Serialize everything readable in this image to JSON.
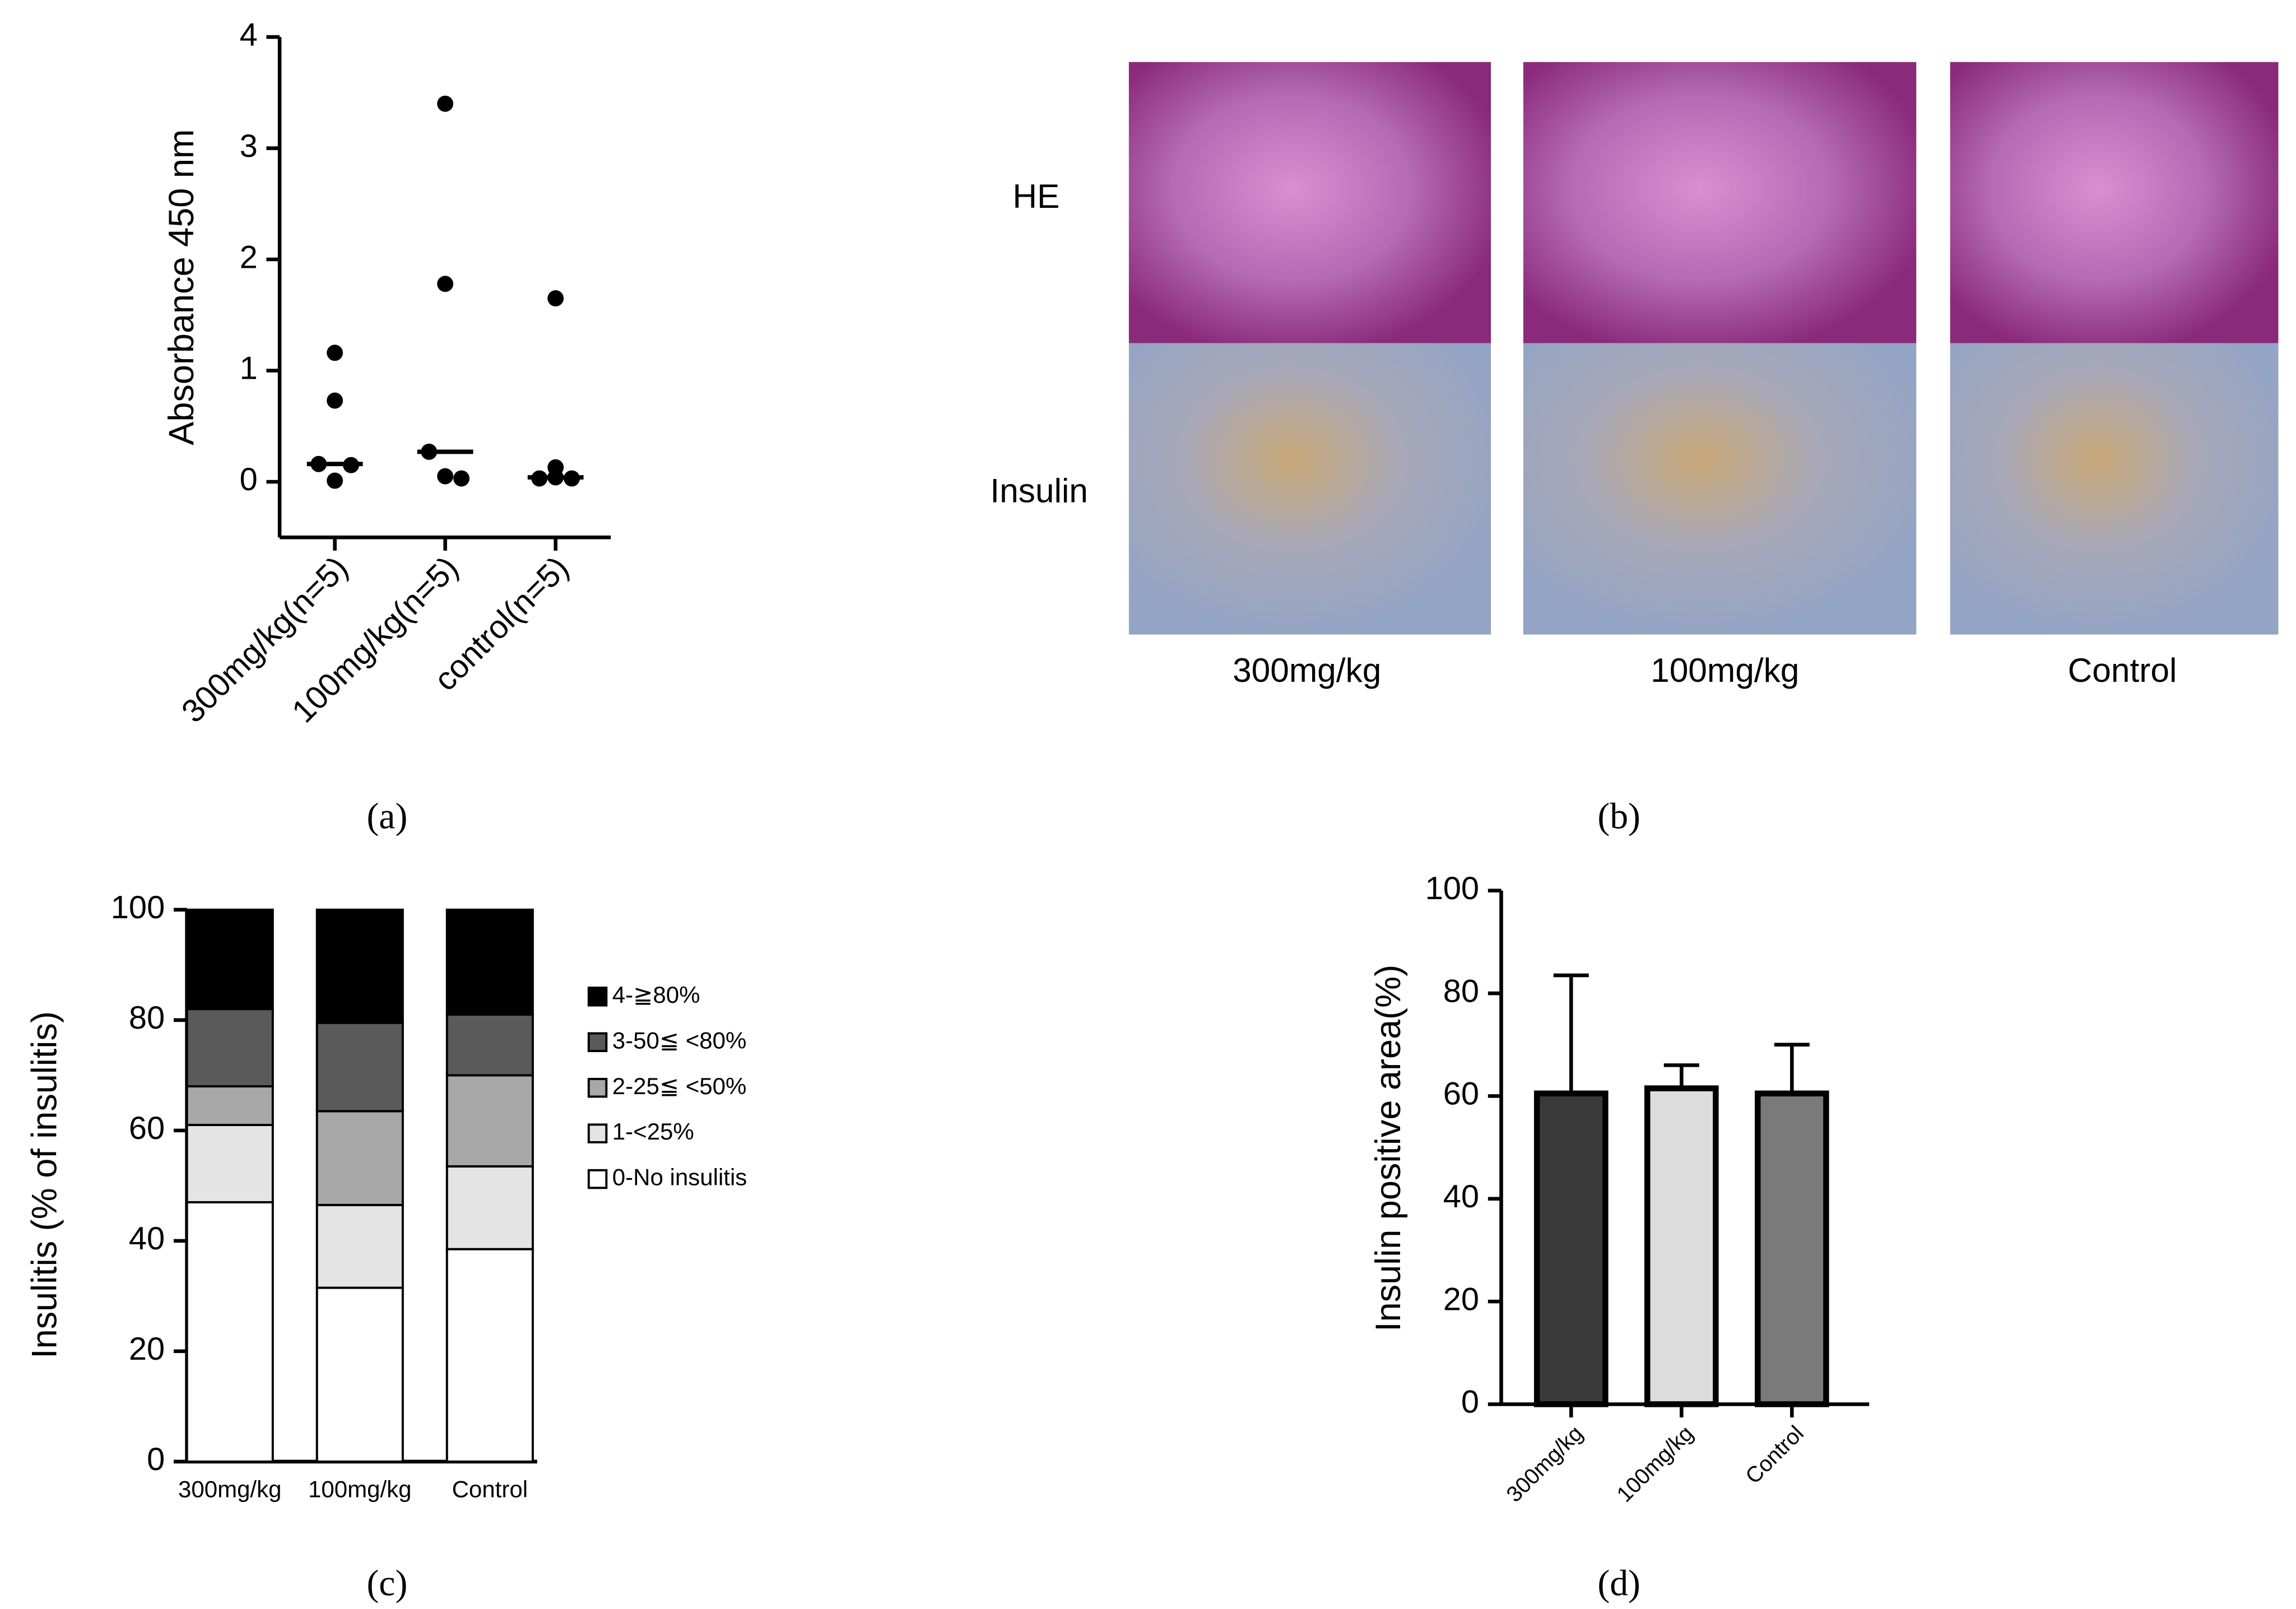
{
  "chart_data": [
    {
      "type": "strip",
      "label": "(a)",
      "y_label": "Absorbance 450 nm",
      "categories": [
        "300mg/kg(n=5)",
        "100mg/kg(n=5)",
        "control(n=5)"
      ],
      "values": [
        [
          1.16,
          0.73,
          0.16,
          0.15,
          0.01
        ],
        [
          3.4,
          1.78,
          0.27,
          0.03,
          0.05
        ],
        [
          1.65,
          0.13,
          0.03,
          0.03,
          0.04
        ]
      ],
      "medians": [
        0.16,
        0.27,
        0.04
      ],
      "color": "#000000",
      "ylim": [
        -0.5,
        4
      ],
      "yticks": [
        0,
        1,
        2,
        3,
        4
      ]
    },
    {
      "type": "bar",
      "stacked": true,
      "label": "(c)",
      "y_label": "Insulitis (% of insulitis)",
      "categories": [
        "300mg/kg",
        "100mg/kg",
        "Control"
      ],
      "series": [
        {
          "name": "0-No insulitis",
          "color": "#ffffff",
          "values": [
            47,
            31.5,
            38.5
          ]
        },
        {
          "name": "1-<25%",
          "color": "#e4e4e4",
          "values": [
            14,
            15,
            15
          ]
        },
        {
          "name": "2-25≦ <50%",
          "color": "#a8a8a8",
          "values": [
            7,
            17,
            16.5
          ]
        },
        {
          "name": "3-50≦ <80%",
          "color": "#5a5a5a",
          "values": [
            14,
            16,
            11
          ]
        },
        {
          "name": "4-≧80%",
          "color": "#000000",
          "values": [
            18,
            20.5,
            19
          ]
        }
      ],
      "ylim": [
        0,
        100
      ],
      "yticks": [
        0,
        20,
        40,
        60,
        80,
        100
      ]
    },
    {
      "type": "bar",
      "label": "(d)",
      "y_label": "Insulin positive area(%)",
      "categories": [
        "300mg/kg",
        "100mg/kg",
        "Control"
      ],
      "values": [
        60.5,
        61.5,
        60.5
      ],
      "errors": [
        23,
        4.5,
        9.5
      ],
      "colors": [
        "#3a3a3a",
        "#dcdcdc",
        "#7a7a7a"
      ],
      "ylim": [
        0,
        100
      ],
      "yticks": [
        0,
        20,
        40,
        60,
        80,
        100
      ]
    }
  ],
  "image_panel": {
    "label": "(b)",
    "row_labels": [
      "HE",
      "Insulin"
    ],
    "column_labels": [
      "300mg/kg",
      "100mg/kg",
      "Control"
    ]
  }
}
